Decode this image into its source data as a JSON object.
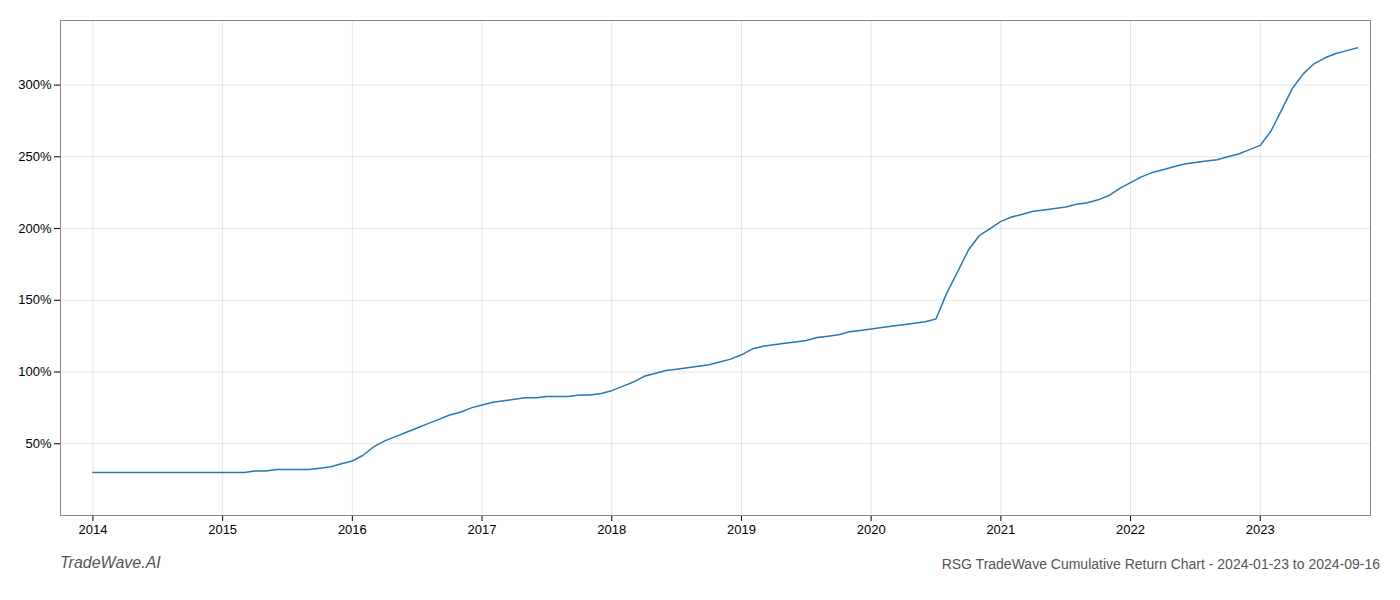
{
  "chart_data": {
    "type": "line",
    "title": "RSG TradeWave Cumulative Return Chart - 2024-01-23 to 2024-09-16",
    "annotations": [
      "TradeWave.AI"
    ],
    "color": "#2878b5",
    "x": [
      2014.0,
      2014.083,
      2014.167,
      2014.25,
      2014.333,
      2014.417,
      2014.5,
      2014.583,
      2014.667,
      2014.75,
      2014.833,
      2014.917,
      2015.0,
      2015.083,
      2015.167,
      2015.25,
      2015.333,
      2015.417,
      2015.5,
      2015.583,
      2015.667,
      2015.75,
      2015.833,
      2015.917,
      2016.0,
      2016.083,
      2016.167,
      2016.25,
      2016.333,
      2016.417,
      2016.5,
      2016.583,
      2016.667,
      2016.75,
      2016.833,
      2016.917,
      2017.0,
      2017.083,
      2017.167,
      2017.25,
      2017.333,
      2017.417,
      2017.5,
      2017.583,
      2017.667,
      2017.75,
      2017.833,
      2017.917,
      2018.0,
      2018.083,
      2018.167,
      2018.25,
      2018.333,
      2018.417,
      2018.5,
      2018.583,
      2018.667,
      2018.75,
      2018.833,
      2018.917,
      2019.0,
      2019.083,
      2019.167,
      2019.25,
      2019.333,
      2019.417,
      2019.5,
      2019.583,
      2019.667,
      2019.75,
      2019.833,
      2019.917,
      2020.0,
      2020.083,
      2020.167,
      2020.25,
      2020.333,
      2020.417,
      2020.5,
      2020.583,
      2020.667,
      2020.75,
      2020.833,
      2020.917,
      2021.0,
      2021.083,
      2021.167,
      2021.25,
      2021.333,
      2021.417,
      2021.5,
      2021.583,
      2021.667,
      2021.75,
      2021.833,
      2021.917,
      2022.0,
      2022.083,
      2022.167,
      2022.25,
      2022.333,
      2022.417,
      2022.5,
      2022.583,
      2022.667,
      2022.75,
      2022.833,
      2022.917,
      2023.0,
      2023.083,
      2023.167,
      2023.25,
      2023.333,
      2023.417,
      2023.5,
      2023.583,
      2023.667,
      2023.75
    ],
    "values": [
      30,
      30,
      30,
      30,
      30,
      30,
      30,
      30,
      30,
      30,
      30,
      30,
      30,
      30,
      30,
      31,
      31,
      32,
      32,
      32,
      32,
      33,
      34,
      36,
      38,
      42,
      48,
      52,
      55,
      58,
      61,
      64,
      67,
      70,
      72,
      75,
      77,
      79,
      80,
      81,
      82,
      82,
      83,
      83,
      83,
      84,
      84,
      85,
      87,
      90,
      93,
      97,
      99,
      101,
      102,
      103,
      104,
      105,
      107,
      109,
      112,
      116,
      118,
      119,
      120,
      121,
      122,
      124,
      125,
      126,
      128,
      129,
      130,
      131,
      132,
      133,
      134,
      135,
      137,
      155,
      170,
      185,
      195,
      200,
      205,
      208,
      210,
      212,
      213,
      214,
      215,
      217,
      218,
      220,
      223,
      228,
      232,
      236,
      239,
      241,
      243,
      245,
      246,
      247,
      248,
      250,
      252,
      255,
      258,
      268,
      283,
      298,
      308,
      315,
      319,
      322,
      324,
      326
    ],
    "xlim": [
      2013.75,
      2023.85
    ],
    "xticks": [
      2014,
      2015,
      2016,
      2017,
      2018,
      2019,
      2020,
      2021,
      2022,
      2023
    ],
    "ylim": [
      0,
      345
    ],
    "yticks": [
      {
        "value": 50,
        "label": "50%"
      },
      {
        "value": 100,
        "label": "100%"
      },
      {
        "value": 150,
        "label": "150%"
      },
      {
        "value": 200,
        "label": "200%"
      },
      {
        "value": 250,
        "label": "250%"
      },
      {
        "value": 300,
        "label": "300%"
      }
    ],
    "grid": true
  }
}
